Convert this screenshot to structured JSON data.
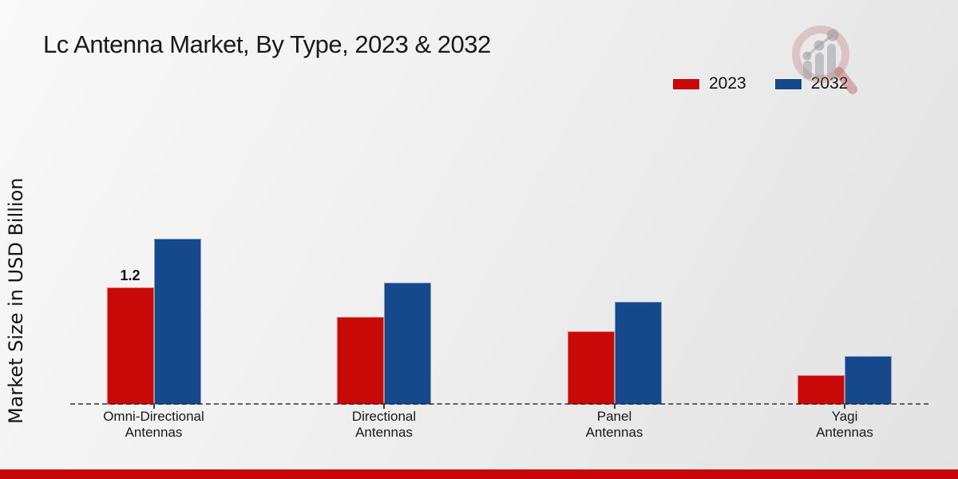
{
  "header": {
    "title": "Lc Antenna Market, By Type, 2023 & 2032"
  },
  "chart_data": {
    "type": "bar",
    "title": "Lc Antenna Market, By Type, 2023 & 2032",
    "xlabel": "",
    "ylabel": "Market Size in USD Billion",
    "unit": "USD Billion",
    "categories": [
      "Omni-Directional Antennas",
      "Directional Antennas",
      "Panel Antennas",
      "Yagi Antennas"
    ],
    "category_lines": [
      [
        "Omni-Directional",
        "Antennas"
      ],
      [
        "Directional",
        "Antennas"
      ],
      [
        "Panel",
        "Antennas"
      ],
      [
        "Yagi",
        "Antennas"
      ]
    ],
    "series": [
      {
        "name": "2023",
        "color": "#c90808",
        "values": [
          1.2,
          0.9,
          0.75,
          0.3
        ]
      },
      {
        "name": "2032",
        "color": "#15498c",
        "values": [
          1.7,
          1.25,
          1.05,
          0.5
        ]
      }
    ],
    "data_labels": [
      {
        "series": "2023",
        "category": "Omni-Directional Antennas",
        "text": "1.2"
      }
    ],
    "ylim": [
      0,
      2
    ],
    "grid": false,
    "legend_position": "top-right",
    "baseline_style": "dashed"
  },
  "legend": [
    {
      "label": "2023",
      "color": "#c90808"
    },
    {
      "label": "2032",
      "color": "#15498c"
    }
  ],
  "colors": {
    "series_2023": "#c90808",
    "series_2032": "#15498c",
    "footer_strip": "#c40707",
    "baseline": "#3a3a3a",
    "text": "#1a1a1a",
    "background_light": "#f9f9f9",
    "background_dark": "#e3e3e3"
  },
  "watermark": {
    "name": "magnifier-growth-chart-logo"
  }
}
